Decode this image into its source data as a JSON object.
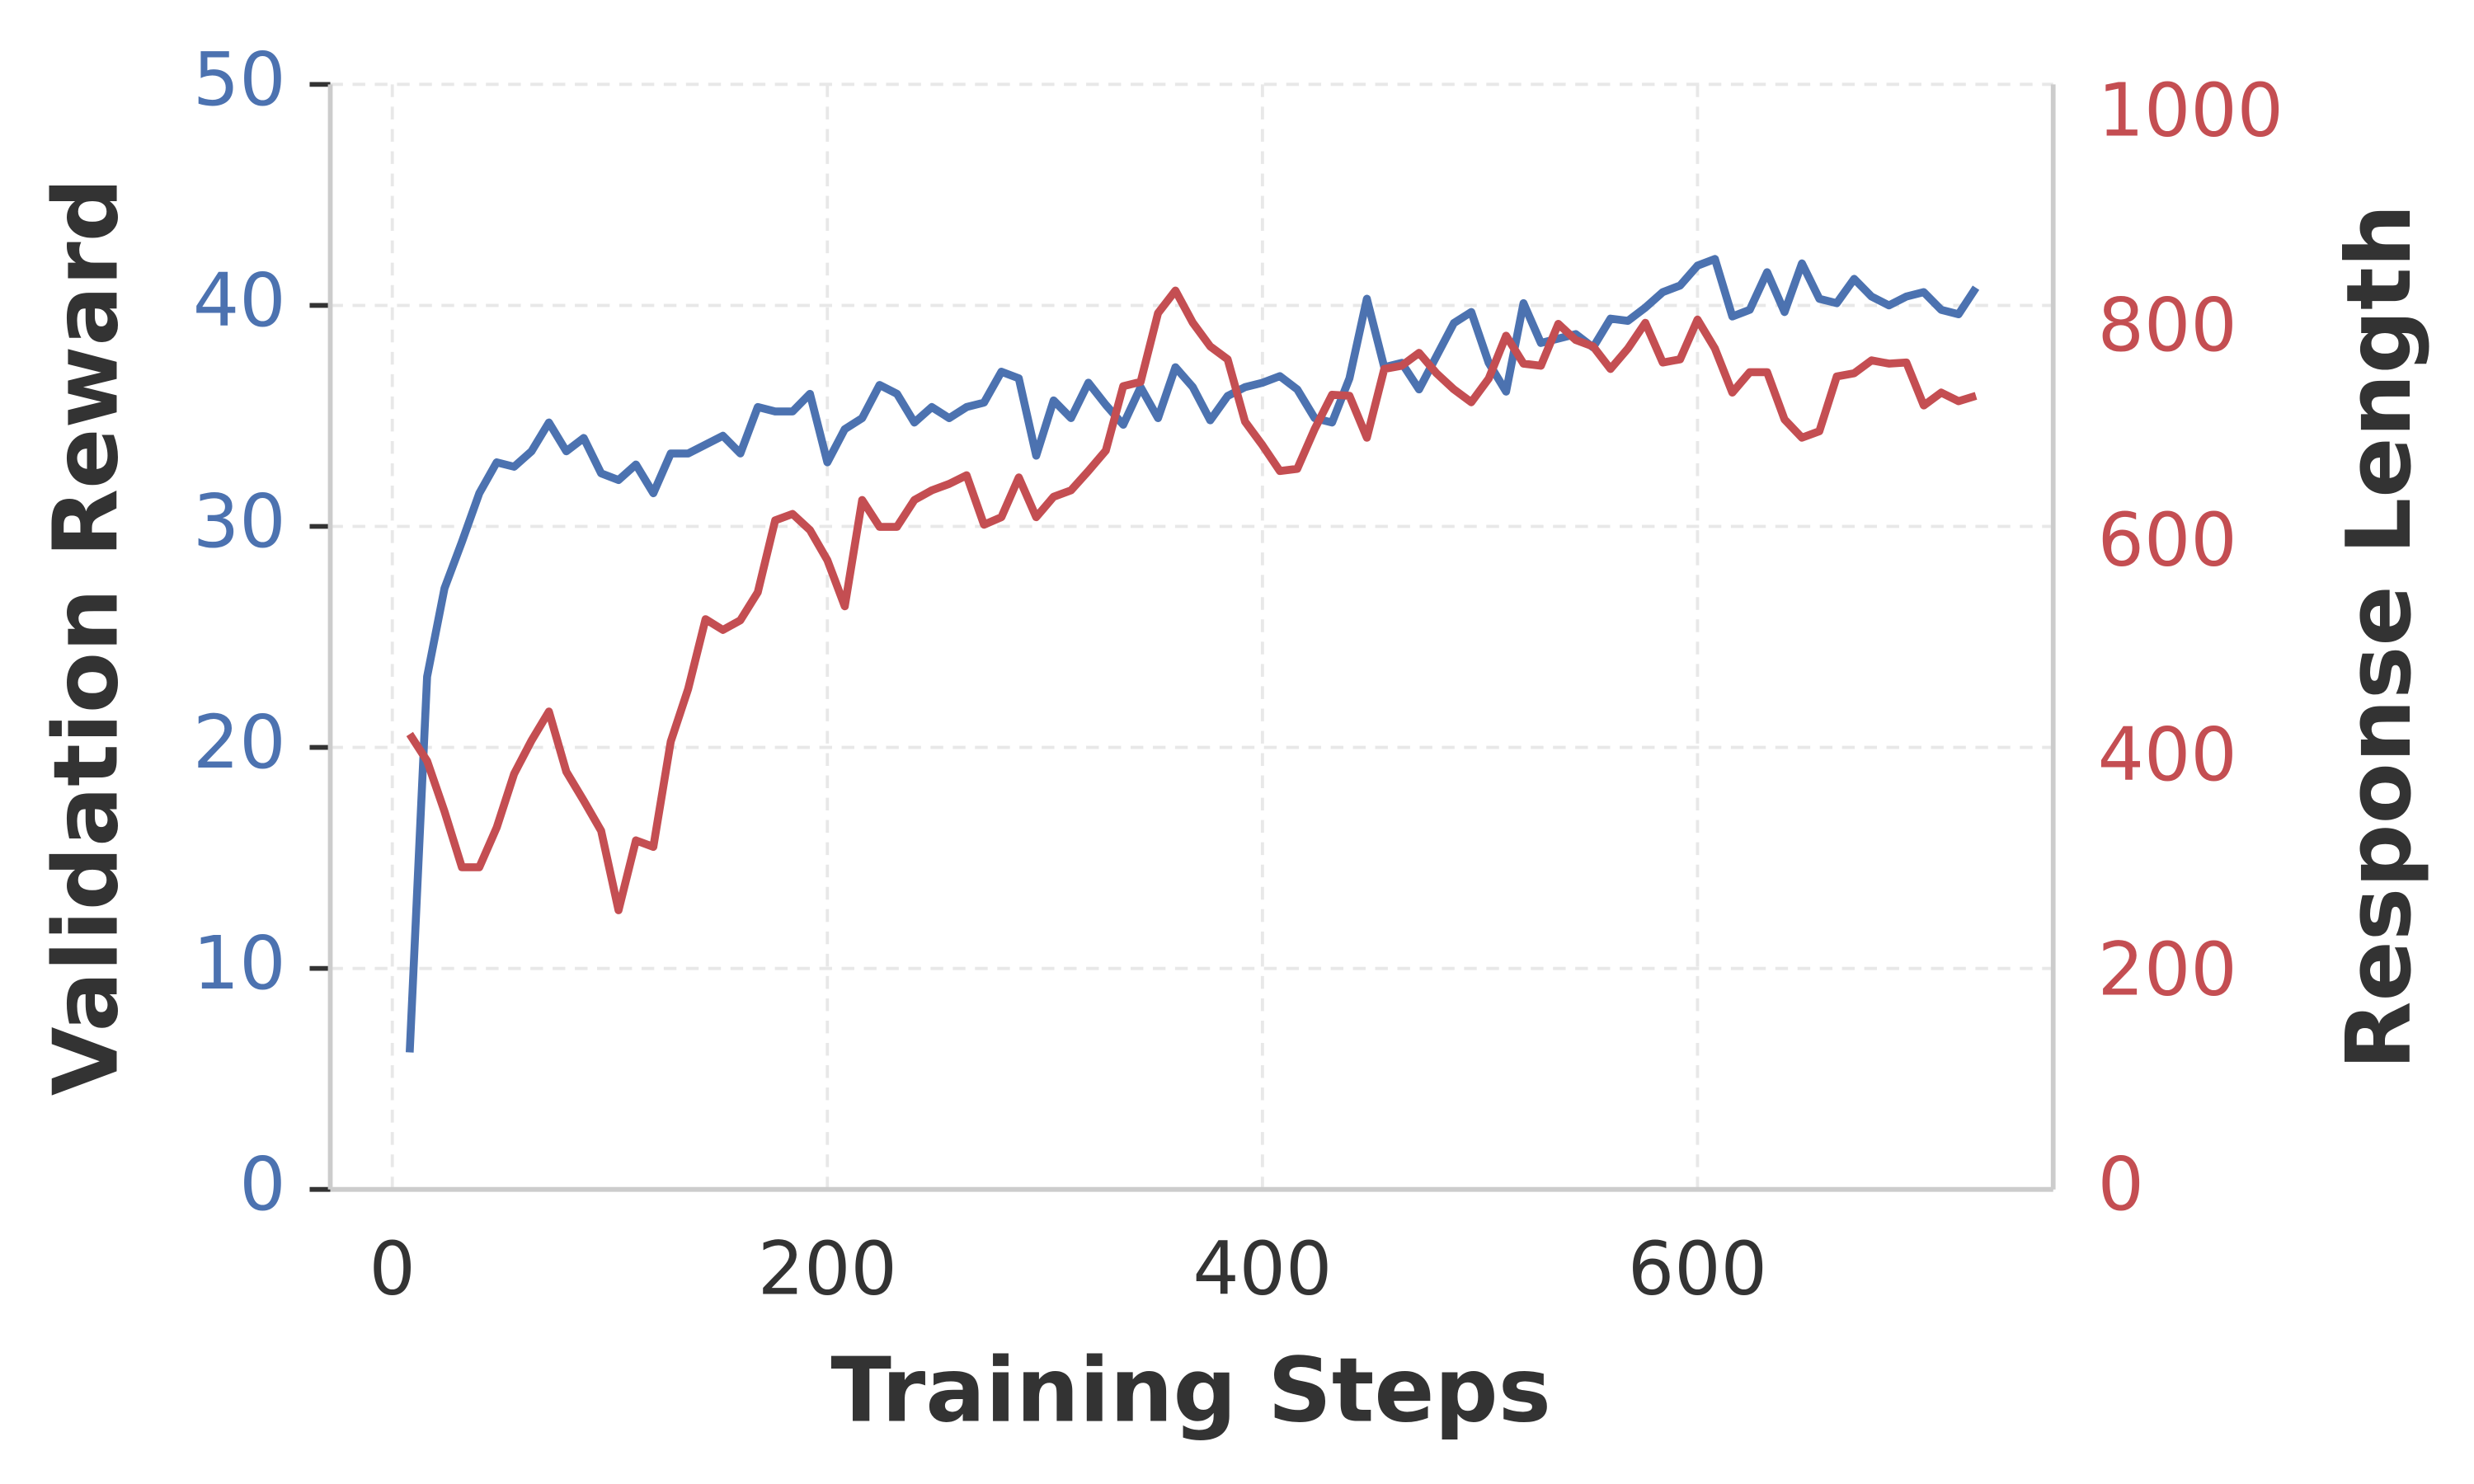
{
  "chart_data": {
    "type": "line",
    "xlabel": "Training Steps",
    "ylabel": "Validation Reward",
    "y2label": "Response Length",
    "x": [
      8,
      16,
      24,
      32,
      40,
      48,
      56,
      64,
      72,
      80,
      88,
      96,
      104,
      112,
      120,
      128,
      136,
      144,
      152,
      160,
      168,
      176,
      184,
      192,
      200,
      208,
      216,
      224,
      232,
      240,
      248,
      256,
      264,
      272,
      280,
      288,
      296,
      304,
      312,
      320,
      328,
      336,
      344,
      352,
      360,
      368,
      376,
      384,
      392,
      400,
      408,
      416,
      424,
      432,
      440,
      448,
      456,
      464,
      472,
      480,
      488,
      496,
      504,
      512,
      520,
      528,
      536,
      544,
      552,
      560,
      568,
      576,
      584,
      592,
      600,
      608,
      616,
      624,
      632,
      640,
      648,
      656,
      664,
      672,
      680,
      688,
      696,
      704,
      712,
      720,
      728
    ],
    "series": [
      {
        "color": "#4c72b0",
        "values": [
          6.2,
          23.2,
          27.2,
          29.3,
          31.5,
          32.9,
          32.7,
          33.4,
          34.7,
          33.4,
          34.0,
          32.4,
          32.1,
          32.8,
          31.5,
          33.3,
          33.3,
          33.7,
          34.1,
          33.3,
          35.4,
          35.2,
          35.2,
          36.0,
          32.9,
          34.4,
          34.9,
          36.4,
          36.0,
          34.7,
          35.4,
          34.9,
          35.4,
          35.6,
          37.0,
          36.7,
          33.2,
          35.7,
          34.9,
          36.5,
          35.5,
          34.6,
          36.3,
          34.9,
          37.2,
          36.3,
          34.8,
          35.9,
          36.3,
          36.5,
          36.8,
          36.2,
          34.9,
          34.7,
          36.7,
          40.3,
          37.2,
          37.4,
          36.2,
          37.7,
          39.2,
          39.7,
          37.4,
          36.1,
          40.1,
          38.3,
          38.5,
          38.7,
          38.1,
          39.4,
          39.3,
          39.9,
          40.6,
          40.9,
          41.8,
          42.1,
          39.5,
          39.8,
          41.5,
          39.7,
          41.9,
          40.3,
          40.1,
          41.2,
          40.4,
          40.0,
          40.4,
          40.6,
          39.8,
          39.6,
          40.8
        ]
      },
      {
        "color": "#c44e52",
        "axis": "y2",
        "values": [
          424,
          399,
          352,
          300,
          300,
          337,
          387,
          418,
          445,
          389,
          362,
          334,
          260,
          325,
          319,
          417,
          466,
          531,
          521,
          530,
          556,
          623,
          629,
          614,
          586,
          543,
          642,
          617,
          617,
          642,
          651,
          657,
          665,
          619,
          626,
          663,
          626,
          645,
          651,
          669,
          688,
          748,
          752,
          816,
          837,
          807,
          785,
          773,
          715,
          693,
          669,
          671,
          708,
          740,
          739,
          700,
          764,
          767,
          779,
          760,
          745,
          733,
          755,
          795,
          769,
          767,
          806,
          791,
          785,
          764,
          783,
          807,
          770,
          773,
          810,
          783,
          742,
          761,
          761,
          717,
          700,
          706,
          757,
          760,
          772,
          769,
          770,
          730,
          742,
          734,
          739
        ]
      }
    ],
    "xlim": [
      -28.5,
      763.5
    ],
    "xticks": [
      0,
      200,
      400,
      600
    ],
    "ylim": [
      0,
      50
    ],
    "yticks": [
      0,
      10,
      20,
      30,
      40,
      50
    ],
    "y2lim": [
      0,
      1029
    ],
    "y2ticks": [
      0,
      200,
      400,
      600,
      800,
      1000
    ],
    "grid": true
  }
}
